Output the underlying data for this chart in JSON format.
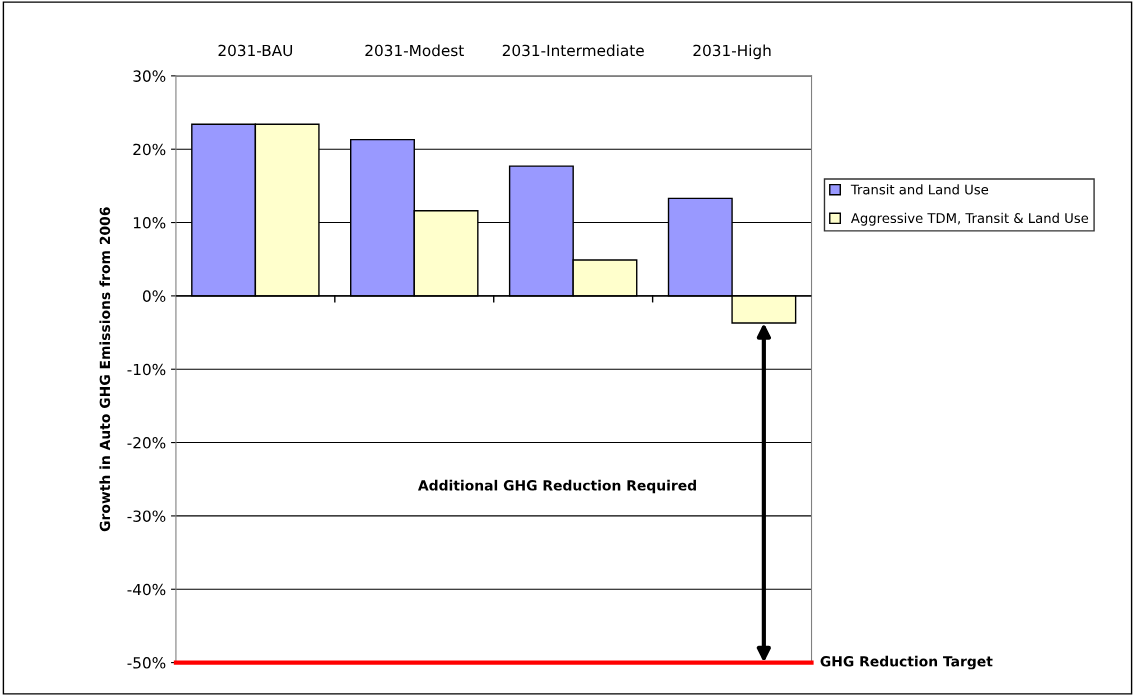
{
  "chart_data": {
    "type": "bar",
    "ylabel": "Growth in Auto GHG Emissions from 2006",
    "categories": [
      "2031-BAU",
      "2031-Modest",
      "2031-Intermediate",
      "2031-High"
    ],
    "series": [
      {
        "name": "Transit and Land Use",
        "color": "#9999ff",
        "values": [
          23.4,
          21.3,
          17.7,
          13.3
        ]
      },
      {
        "name": "Aggressive TDM, Transit & Land Use",
        "color": "#ffffcc",
        "values": [
          23.4,
          11.6,
          4.9,
          -3.7
        ]
      }
    ],
    "ylim": [
      -50,
      30
    ],
    "yticks": [
      {
        "value": -50,
        "label": "-50%"
      },
      {
        "value": -40,
        "label": "-40%"
      },
      {
        "value": -30,
        "label": "-30%"
      },
      {
        "value": -20,
        "label": "-20%"
      },
      {
        "value": -10,
        "label": "-10%"
      },
      {
        "value": 0,
        "label": "0%"
      },
      {
        "value": 10,
        "label": "10%"
      },
      {
        "value": 20,
        "label": "20%"
      },
      {
        "value": 30,
        "label": "30%"
      }
    ],
    "grid": "y",
    "legend": "right",
    "ref_lines": [
      {
        "axis": "y",
        "value": -50,
        "label": "GHG Reduction Target",
        "color": "#ff0000"
      }
    ],
    "annotations": [
      "Additional GHG Reduction Required"
    ]
  }
}
